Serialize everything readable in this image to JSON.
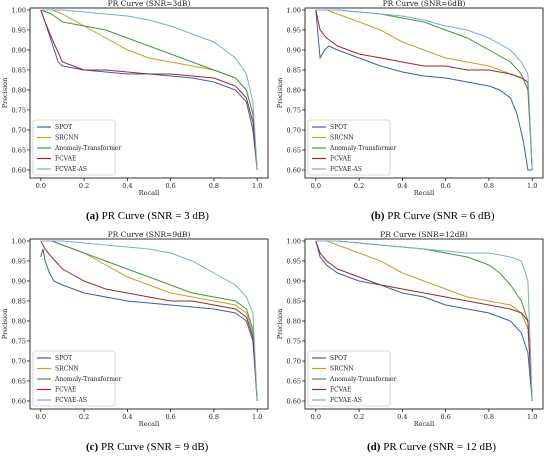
{
  "legend_labels": [
    "SPOT",
    "SRCNN",
    "Anomaly-Transformer",
    "FCVAE",
    "FCVAE-AS"
  ],
  "colors": {
    "SPOT": "#3a5fad",
    "SRCNN": "#c8a020",
    "Anomaly-Transformer": "#3f9a3f",
    "FCVAE": "#9b2a2a",
    "FCVAE-AS": "#7fa8e0"
  },
  "panels": [
    {
      "caption_letter": "(a)",
      "caption_text": " PR Curve (SNR = 3 dB)"
    },
    {
      "caption_letter": "(b)",
      "caption_text": " PR Curve (SNR = 6 dB)"
    },
    {
      "caption_letter": "(c)",
      "caption_text": " PR Curve (SNR = 9 dB)"
    },
    {
      "caption_letter": "(d)",
      "caption_text": " PR Curve (SNR = 12 dB)"
    }
  ],
  "chart_data": [
    {
      "type": "line",
      "title": "PR Curve (SNR=3dB)",
      "xlabel": "Recall",
      "ylabel": "Precision",
      "xlim": [
        -0.05,
        1.05
      ],
      "ylim": [
        0.58,
        1.005
      ],
      "xticks": [
        "0.0",
        "0.2",
        "0.4",
        "0.6",
        "0.8",
        "1.0"
      ],
      "yticks": [
        "0.60",
        "0.65",
        "0.70",
        "0.75",
        "0.80",
        "0.85",
        "0.90",
        "0.95",
        "1.00"
      ],
      "legend": "lower-left",
      "series": [
        {
          "name": "SPOT",
          "x": [
            0,
            0.02,
            0.05,
            0.08,
            0.1,
            0.15,
            0.2,
            0.3,
            0.4,
            0.5,
            0.6,
            0.7,
            0.8,
            0.9,
            0.95,
            0.98,
            1.0
          ],
          "y": [
            1.0,
            0.97,
            0.92,
            0.87,
            0.86,
            0.855,
            0.85,
            0.845,
            0.84,
            0.84,
            0.835,
            0.83,
            0.82,
            0.8,
            0.77,
            0.7,
            0.6
          ]
        },
        {
          "name": "SRCNN",
          "x": [
            0,
            0.05,
            0.1,
            0.2,
            0.3,
            0.4,
            0.5,
            0.6,
            0.7,
            0.8,
            0.9,
            0.95,
            0.98,
            1.0
          ],
          "y": [
            1.0,
            1.0,
            0.99,
            0.96,
            0.93,
            0.9,
            0.88,
            0.87,
            0.86,
            0.85,
            0.83,
            0.8,
            0.74,
            0.6
          ]
        },
        {
          "name": "Anomaly-Transformer",
          "x": [
            0,
            0.05,
            0.1,
            0.2,
            0.3,
            0.4,
            0.5,
            0.6,
            0.7,
            0.8,
            0.9,
            0.95,
            0.98,
            1.0
          ],
          "y": [
            1.0,
            0.99,
            0.97,
            0.96,
            0.95,
            0.93,
            0.91,
            0.89,
            0.87,
            0.85,
            0.83,
            0.8,
            0.74,
            0.6
          ]
        },
        {
          "name": "FCVAE",
          "x": [
            0,
            0.02,
            0.05,
            0.1,
            0.2,
            0.3,
            0.4,
            0.5,
            0.6,
            0.7,
            0.8,
            0.9,
            0.95,
            0.98,
            1.0
          ],
          "y": [
            1.0,
            0.97,
            0.93,
            0.87,
            0.85,
            0.85,
            0.845,
            0.84,
            0.84,
            0.835,
            0.83,
            0.81,
            0.78,
            0.72,
            0.6
          ]
        },
        {
          "name": "FCVAE-AS",
          "x": [
            0,
            0.1,
            0.2,
            0.3,
            0.4,
            0.5,
            0.6,
            0.7,
            0.8,
            0.85,
            0.9,
            0.95,
            0.98,
            1.0
          ],
          "y": [
            1.0,
            1.0,
            0.995,
            0.99,
            0.985,
            0.975,
            0.96,
            0.94,
            0.92,
            0.9,
            0.88,
            0.84,
            0.77,
            0.6
          ]
        }
      ]
    },
    {
      "type": "line",
      "title": "PR Curve (SNR=6dB)",
      "xlabel": "Recall",
      "ylabel": "Precision",
      "xlim": [
        -0.05,
        1.05
      ],
      "ylim": [
        0.58,
        1.005
      ],
      "xticks": [
        "0.0",
        "0.2",
        "0.4",
        "0.6",
        "0.8",
        "1.0"
      ],
      "yticks": [
        "0.60",
        "0.65",
        "0.70",
        "0.75",
        "0.80",
        "0.85",
        "0.90",
        "0.95",
        "1.00"
      ],
      "legend": "lower-left",
      "series": [
        {
          "name": "SPOT",
          "x": [
            0,
            0.02,
            0.04,
            0.06,
            0.1,
            0.2,
            0.3,
            0.4,
            0.5,
            0.6,
            0.7,
            0.8,
            0.85,
            0.9,
            0.93,
            0.96,
            0.98,
            1.0
          ],
          "y": [
            1.0,
            0.88,
            0.9,
            0.91,
            0.9,
            0.88,
            0.86,
            0.845,
            0.835,
            0.83,
            0.82,
            0.81,
            0.8,
            0.78,
            0.74,
            0.67,
            0.6,
            0.6
          ]
        },
        {
          "name": "SRCNN",
          "x": [
            0,
            0.05,
            0.1,
            0.2,
            0.3,
            0.4,
            0.5,
            0.6,
            0.7,
            0.8,
            0.9,
            0.95,
            0.98,
            1.0
          ],
          "y": [
            1.0,
            1.0,
            0.99,
            0.97,
            0.95,
            0.92,
            0.9,
            0.88,
            0.87,
            0.86,
            0.84,
            0.83,
            0.82,
            0.6
          ]
        },
        {
          "name": "Anomaly-Transformer",
          "x": [
            0,
            0.1,
            0.2,
            0.3,
            0.4,
            0.5,
            0.6,
            0.7,
            0.8,
            0.9,
            0.95,
            0.98,
            1.0
          ],
          "y": [
            1.0,
            1.0,
            0.995,
            0.99,
            0.98,
            0.97,
            0.95,
            0.93,
            0.9,
            0.87,
            0.84,
            0.8,
            0.6
          ]
        },
        {
          "name": "FCVAE",
          "x": [
            0,
            0.02,
            0.05,
            0.1,
            0.2,
            0.3,
            0.4,
            0.5,
            0.6,
            0.7,
            0.8,
            0.9,
            0.95,
            0.98,
            1.0
          ],
          "y": [
            1.0,
            0.95,
            0.93,
            0.91,
            0.89,
            0.88,
            0.87,
            0.86,
            0.86,
            0.85,
            0.85,
            0.84,
            0.83,
            0.82,
            0.6
          ]
        },
        {
          "name": "FCVAE-AS",
          "x": [
            0,
            0.1,
            0.2,
            0.3,
            0.4,
            0.5,
            0.6,
            0.7,
            0.8,
            0.9,
            0.95,
            0.98,
            1.0
          ],
          "y": [
            1.0,
            1.0,
            0.995,
            0.99,
            0.985,
            0.975,
            0.96,
            0.95,
            0.93,
            0.9,
            0.87,
            0.84,
            0.6
          ]
        }
      ]
    },
    {
      "type": "line",
      "title": "PR Curve (SNR=9dB)",
      "xlabel": "Recall",
      "ylabel": "Precision",
      "xlim": [
        -0.05,
        1.05
      ],
      "ylim": [
        0.58,
        1.005
      ],
      "xticks": [
        "0.0",
        "0.2",
        "0.4",
        "0.6",
        "0.8",
        "1.0"
      ],
      "yticks": [
        "0.60",
        "0.65",
        "0.70",
        "0.75",
        "0.80",
        "0.85",
        "0.90",
        "0.95",
        "1.00"
      ],
      "legend": "lower-left",
      "series": [
        {
          "name": "SPOT",
          "x": [
            0,
            0.01,
            0.02,
            0.04,
            0.06,
            0.1,
            0.2,
            0.3,
            0.4,
            0.5,
            0.6,
            0.7,
            0.8,
            0.9,
            0.95,
            0.98,
            1.0
          ],
          "y": [
            0.96,
            0.98,
            0.95,
            0.92,
            0.9,
            0.89,
            0.87,
            0.86,
            0.85,
            0.845,
            0.84,
            0.835,
            0.83,
            0.82,
            0.8,
            0.75,
            0.6
          ]
        },
        {
          "name": "SRCNN",
          "x": [
            0,
            0.05,
            0.1,
            0.2,
            0.3,
            0.4,
            0.5,
            0.6,
            0.7,
            0.8,
            0.9,
            0.95,
            0.98,
            1.0
          ],
          "y": [
            1.0,
            1.0,
            0.99,
            0.97,
            0.94,
            0.91,
            0.89,
            0.87,
            0.86,
            0.85,
            0.84,
            0.82,
            0.77,
            0.6
          ]
        },
        {
          "name": "Anomaly-Transformer",
          "x": [
            0,
            0.05,
            0.1,
            0.2,
            0.3,
            0.4,
            0.5,
            0.6,
            0.7,
            0.8,
            0.9,
            0.95,
            0.98,
            1.0
          ],
          "y": [
            1.0,
            1.0,
            0.99,
            0.97,
            0.95,
            0.93,
            0.91,
            0.89,
            0.87,
            0.86,
            0.85,
            0.83,
            0.78,
            0.6
          ]
        },
        {
          "name": "FCVAE",
          "x": [
            0,
            0.02,
            0.05,
            0.1,
            0.2,
            0.3,
            0.4,
            0.5,
            0.6,
            0.7,
            0.8,
            0.9,
            0.95,
            0.98,
            1.0
          ],
          "y": [
            1.0,
            0.98,
            0.96,
            0.93,
            0.9,
            0.88,
            0.87,
            0.86,
            0.85,
            0.85,
            0.84,
            0.83,
            0.81,
            0.76,
            0.6
          ]
        },
        {
          "name": "FCVAE-AS",
          "x": [
            0,
            0.1,
            0.2,
            0.3,
            0.4,
            0.5,
            0.6,
            0.7,
            0.8,
            0.9,
            0.95,
            0.98,
            1.0
          ],
          "y": [
            1.0,
            1.0,
            0.995,
            0.99,
            0.985,
            0.98,
            0.97,
            0.95,
            0.92,
            0.89,
            0.86,
            0.82,
            0.6
          ]
        }
      ]
    },
    {
      "type": "line",
      "title": "PR Curve (SNR=12dB)",
      "xlabel": "Recall",
      "ylabel": "Precision",
      "xlim": [
        -0.05,
        1.05
      ],
      "ylim": [
        0.58,
        1.005
      ],
      "xticks": [
        "0.0",
        "0.2",
        "0.4",
        "0.6",
        "0.8",
        "1.0"
      ],
      "yticks": [
        "0.60",
        "0.65",
        "0.70",
        "0.75",
        "0.80",
        "0.85",
        "0.90",
        "0.95",
        "1.00"
      ],
      "legend": "lower-left",
      "series": [
        {
          "name": "SPOT",
          "x": [
            0,
            0.02,
            0.05,
            0.1,
            0.2,
            0.3,
            0.4,
            0.5,
            0.6,
            0.7,
            0.8,
            0.85,
            0.9,
            0.95,
            0.98,
            1.0
          ],
          "y": [
            1.0,
            0.96,
            0.94,
            0.92,
            0.9,
            0.89,
            0.87,
            0.86,
            0.84,
            0.83,
            0.82,
            0.81,
            0.8,
            0.77,
            0.72,
            0.6
          ]
        },
        {
          "name": "SRCNN",
          "x": [
            0,
            0.05,
            0.1,
            0.2,
            0.3,
            0.4,
            0.5,
            0.6,
            0.7,
            0.8,
            0.9,
            0.95,
            0.98,
            1.0
          ],
          "y": [
            1.0,
            1.0,
            0.99,
            0.97,
            0.95,
            0.92,
            0.9,
            0.88,
            0.86,
            0.85,
            0.84,
            0.82,
            0.78,
            0.6
          ]
        },
        {
          "name": "Anomaly-Transformer",
          "x": [
            0,
            0.1,
            0.2,
            0.3,
            0.4,
            0.5,
            0.6,
            0.7,
            0.8,
            0.85,
            0.9,
            0.95,
            0.98,
            1.0
          ],
          "y": [
            1.0,
            1.0,
            0.995,
            0.99,
            0.985,
            0.98,
            0.97,
            0.96,
            0.94,
            0.92,
            0.89,
            0.85,
            0.8,
            0.6
          ]
        },
        {
          "name": "FCVAE",
          "x": [
            0,
            0.02,
            0.05,
            0.1,
            0.2,
            0.3,
            0.4,
            0.5,
            0.6,
            0.7,
            0.8,
            0.9,
            0.95,
            0.98,
            1.0
          ],
          "y": [
            1.0,
            0.97,
            0.95,
            0.93,
            0.91,
            0.89,
            0.88,
            0.87,
            0.86,
            0.85,
            0.84,
            0.83,
            0.82,
            0.8,
            0.6
          ]
        },
        {
          "name": "FCVAE-AS",
          "x": [
            0,
            0.1,
            0.2,
            0.3,
            0.4,
            0.5,
            0.6,
            0.7,
            0.8,
            0.9,
            0.95,
            0.98,
            1.0
          ],
          "y": [
            1.0,
            1.0,
            0.995,
            0.99,
            0.985,
            0.98,
            0.975,
            0.97,
            0.97,
            0.96,
            0.95,
            0.9,
            0.6
          ]
        }
      ]
    }
  ]
}
